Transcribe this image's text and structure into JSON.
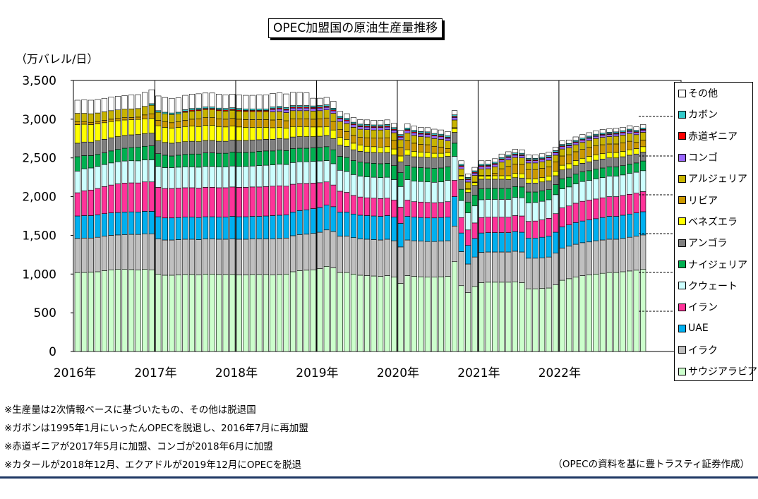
{
  "chart_data": {
    "type": "bar",
    "stacked": true,
    "title": "OPEC加盟国の原油生産量推移",
    "ylabel": "（万バレル/日）",
    "ylim": [
      0,
      3500
    ],
    "yticks": [
      "0",
      "500",
      "1,000",
      "1,500",
      "2,000",
      "2,500",
      "3,000",
      "3,500"
    ],
    "year_labels": [
      "2016年",
      "2017年",
      "2018年",
      "2019年",
      "2020年",
      "2021年",
      "2022年"
    ],
    "legend_position": "right",
    "series": [
      {
        "name": "サウジアラビア",
        "color": "#ccffcc",
        "values": [
          1020,
          1020,
          1025,
          1030,
          1045,
          1055,
          1060,
          1060,
          1058,
          1052,
          1060,
          1055,
          1000,
          985,
          985,
          990,
          995,
          995,
          990,
          1000,
          1000,
          995,
          995,
          995,
          990,
          990,
          995,
          995,
          995,
          990,
          995,
          1000,
          1030,
          1045,
          1050,
          1055,
          1070,
          1100,
          1080,
          1020,
          1020,
          1000,
          985,
          980,
          975,
          970,
          980,
          960,
          880,
          980,
          970,
          965,
          960,
          960,
          965,
          970,
          1160,
          850,
          760,
          840,
          890,
          895,
          895,
          895,
          895,
          900,
          890,
          810,
          810,
          815,
          820,
          860,
          920,
          940,
          960,
          980,
          990,
          1000,
          1010,
          1020,
          1020,
          1030,
          1040,
          1050,
          1060
        ]
      },
      {
        "name": "イラク",
        "color": "#c0c0c0",
        "values": [
          440,
          445,
          440,
          445,
          445,
          445,
          445,
          450,
          455,
          460,
          460,
          465,
          455,
          455,
          455,
          455,
          455,
          455,
          455,
          455,
          455,
          455,
          455,
          460,
          460,
          460,
          460,
          460,
          460,
          465,
          465,
          465,
          465,
          465,
          465,
          470,
          470,
          470,
          470,
          470,
          470,
          470,
          470,
          470,
          470,
          470,
          470,
          470,
          470,
          460,
          460,
          460,
          460,
          460,
          460,
          460,
          460,
          440,
          370,
          380,
          390,
          390,
          390,
          390,
          390,
          395,
          395,
          395,
          395,
          395,
          400,
          410,
          415,
          420,
          425,
          425,
          425,
          430,
          430,
          430,
          430,
          430,
          435,
          440,
          445
        ]
      },
      {
        "name": "UAE",
        "color": "#00b0f0",
        "values": [
          290,
          290,
          290,
          290,
          290,
          290,
          290,
          290,
          290,
          290,
          290,
          290,
          285,
          285,
          285,
          285,
          285,
          285,
          285,
          285,
          285,
          285,
          285,
          290,
          290,
          290,
          290,
          290,
          295,
          300,
          300,
          300,
          305,
          310,
          315,
          320,
          320,
          320,
          320,
          310,
          310,
          305,
          305,
          305,
          305,
          305,
          305,
          305,
          305,
          305,
          305,
          305,
          305,
          305,
          305,
          305,
          380,
          240,
          240,
          240,
          250,
          250,
          250,
          250,
          250,
          255,
          255,
          260,
          260,
          265,
          270,
          270,
          275,
          275,
          280,
          280,
          285,
          285,
          290,
          295,
          295,
          300,
          300,
          300,
          300
        ]
      },
      {
        "name": "イラン",
        "color": "#ff3399",
        "values": [
          300,
          320,
          330,
          340,
          350,
          360,
          370,
          375,
          375,
          375,
          380,
          380,
          380,
          380,
          380,
          380,
          380,
          380,
          380,
          380,
          380,
          380,
          380,
          380,
          380,
          380,
          380,
          380,
          380,
          380,
          380,
          370,
          360,
          350,
          340,
          330,
          320,
          300,
          280,
          270,
          255,
          240,
          235,
          230,
          230,
          230,
          225,
          220,
          210,
          210,
          200,
          200,
          200,
          195,
          195,
          200,
          210,
          200,
          200,
          200,
          200,
          200,
          200,
          200,
          200,
          205,
          210,
          215,
          220,
          225,
          230,
          240,
          245,
          245,
          250,
          255,
          255,
          255,
          255,
          255,
          255,
          255,
          255,
          255,
          260
        ]
      },
      {
        "name": "クウェート",
        "color": "#ccffff",
        "values": [
          280,
          285,
          285,
          285,
          285,
          285,
          285,
          285,
          285,
          285,
          285,
          285,
          270,
          270,
          270,
          270,
          270,
          270,
          270,
          270,
          270,
          270,
          270,
          270,
          270,
          270,
          270,
          275,
          275,
          275,
          280,
          280,
          280,
          280,
          280,
          280,
          280,
          275,
          275,
          270,
          270,
          270,
          270,
          270,
          270,
          270,
          270,
          265,
          265,
          265,
          265,
          265,
          265,
          265,
          265,
          275,
          310,
          220,
          220,
          220,
          230,
          230,
          230,
          230,
          230,
          235,
          235,
          240,
          240,
          240,
          240,
          245,
          245,
          245,
          250,
          255,
          255,
          260,
          260,
          265,
          265,
          265,
          270,
          270,
          270
        ]
      },
      {
        "name": "ナイジェリア",
        "color": "#00b050",
        "values": [
          185,
          170,
          160,
          155,
          150,
          155,
          160,
          165,
          170,
          175,
          175,
          180,
          165,
          160,
          150,
          155,
          160,
          165,
          170,
          175,
          175,
          175,
          175,
          180,
          180,
          180,
          180,
          185,
          185,
          180,
          180,
          180,
          180,
          175,
          175,
          175,
          175,
          180,
          180,
          180,
          180,
          180,
          180,
          180,
          180,
          180,
          180,
          180,
          180,
          180,
          180,
          180,
          180,
          180,
          180,
          175,
          170,
          145,
          140,
          140,
          140,
          140,
          140,
          140,
          140,
          140,
          140,
          140,
          135,
          135,
          130,
          130,
          130,
          125,
          125,
          125,
          125,
          125,
          125,
          120,
          120,
          120,
          120,
          120,
          125
        ]
      },
      {
        "name": "アンゴラ",
        "color": "#808080",
        "values": [
          175,
          175,
          175,
          175,
          175,
          170,
          165,
          165,
          165,
          165,
          165,
          165,
          165,
          165,
          165,
          165,
          165,
          165,
          160,
          160,
          160,
          155,
          155,
          155,
          155,
          155,
          155,
          150,
          150,
          150,
          150,
          150,
          150,
          150,
          150,
          145,
          145,
          145,
          145,
          145,
          145,
          140,
          140,
          140,
          140,
          140,
          140,
          140,
          140,
          135,
          135,
          135,
          135,
          135,
          135,
          135,
          140,
          125,
          125,
          125,
          125,
          120,
          120,
          120,
          115,
          115,
          115,
          115,
          115,
          115,
          115,
          115,
          115,
          110,
          110,
          110,
          115,
          115,
          115,
          115,
          115,
          115,
          115,
          115,
          115
        ]
      },
      {
        "name": "ベネズエラ",
        "color": "#ffff00",
        "values": [
          240,
          230,
          225,
          220,
          215,
          210,
          205,
          200,
          195,
          195,
          190,
          190,
          195,
          195,
          195,
          195,
          195,
          195,
          195,
          195,
          195,
          190,
          185,
          180,
          175,
          170,
          165,
          160,
          155,
          150,
          145,
          140,
          135,
          130,
          130,
          125,
          120,
          115,
          110,
          100,
          90,
          85,
          80,
          75,
          75,
          75,
          75,
          75,
          75,
          70,
          70,
          65,
          65,
          60,
          55,
          50,
          50,
          45,
          40,
          35,
          40,
          40,
          45,
          45,
          50,
          55,
          55,
          55,
          55,
          55,
          60,
          60,
          60,
          65,
          65,
          65,
          70,
          70,
          70,
          70,
          70,
          70,
          70,
          70,
          70
        ]
      },
      {
        "name": "リビア",
        "color": "#cc9900",
        "values": [
          35,
          30,
          30,
          30,
          30,
          30,
          30,
          30,
          30,
          30,
          50,
          60,
          70,
          70,
          70,
          70,
          80,
          90,
          100,
          100,
          100,
          100,
          100,
          100,
          100,
          100,
          100,
          100,
          100,
          100,
          100,
          95,
          100,
          100,
          100,
          100,
          105,
          110,
          110,
          100,
          100,
          100,
          100,
          110,
          110,
          115,
          115,
          110,
          110,
          115,
          105,
          100,
          100,
          90,
          80,
          50,
          10,
          8,
          8,
          8,
          8,
          10,
          30,
          90,
          120,
          120,
          120,
          120,
          120,
          120,
          120,
          120,
          120,
          115,
          115,
          115,
          115,
          115,
          115,
          110,
          110,
          110,
          110,
          80,
          85
        ]
      },
      {
        "name": "アルジェリア",
        "color": "#c8b400",
        "values": [
          110,
          110,
          110,
          110,
          110,
          110,
          110,
          110,
          110,
          110,
          110,
          110,
          105,
          105,
          105,
          105,
          105,
          105,
          105,
          105,
          105,
          105,
          105,
          105,
          105,
          105,
          105,
          105,
          105,
          105,
          105,
          105,
          105,
          105,
          105,
          105,
          105,
          105,
          105,
          105,
          105,
          105,
          105,
          105,
          105,
          105,
          105,
          100,
          100,
          100,
          100,
          100,
          100,
          100,
          100,
          100,
          100,
          85,
          85,
          85,
          85,
          85,
          85,
          85,
          85,
          85,
          85,
          85,
          85,
          85,
          85,
          85,
          90,
          90,
          90,
          90,
          90,
          95,
          95,
          95,
          100,
          100,
          100,
          100,
          100
        ]
      },
      {
        "name": "コンゴ",
        "color": "#9966ff",
        "values": [
          0,
          0,
          0,
          0,
          0,
          0,
          0,
          0,
          0,
          0,
          0,
          0,
          0,
          0,
          0,
          0,
          0,
          0,
          0,
          0,
          0,
          0,
          0,
          0,
          0,
          0,
          0,
          0,
          0,
          30,
          32,
          33,
          33,
          33,
          33,
          33,
          33,
          33,
          33,
          33,
          33,
          33,
          33,
          33,
          33,
          33,
          33,
          33,
          33,
          33,
          33,
          33,
          33,
          33,
          33,
          33,
          33,
          30,
          30,
          30,
          30,
          30,
          30,
          30,
          30,
          30,
          30,
          30,
          30,
          30,
          30,
          30,
          30,
          28,
          28,
          28,
          28,
          28,
          28,
          28,
          28,
          28,
          28,
          28,
          28
        ]
      },
      {
        "name": "赤道ギニア",
        "color": "#ff0000",
        "values": [
          0,
          0,
          0,
          0,
          0,
          0,
          0,
          0,
          0,
          0,
          0,
          0,
          0,
          0,
          0,
          0,
          13,
          13,
          13,
          13,
          13,
          13,
          13,
          13,
          13,
          13,
          13,
          13,
          13,
          13,
          13,
          13,
          13,
          13,
          13,
          13,
          13,
          13,
          13,
          13,
          13,
          13,
          13,
          13,
          13,
          13,
          13,
          13,
          13,
          13,
          13,
          13,
          13,
          13,
          13,
          13,
          13,
          12,
          12,
          12,
          12,
          12,
          12,
          12,
          12,
          12,
          12,
          12,
          11,
          11,
          11,
          11,
          11,
          10,
          10,
          10,
          10,
          10,
          10,
          10,
          10,
          10,
          10,
          10,
          10
        ]
      },
      {
        "name": "カボン",
        "color": "#33cccc",
        "values": [
          0,
          0,
          0,
          0,
          0,
          0,
          0,
          0,
          0,
          0,
          0,
          20,
          20,
          20,
          20,
          20,
          20,
          20,
          20,
          20,
          20,
          20,
          20,
          20,
          20,
          20,
          20,
          20,
          20,
          20,
          20,
          20,
          20,
          20,
          20,
          20,
          20,
          20,
          20,
          20,
          20,
          20,
          20,
          20,
          20,
          20,
          20,
          20,
          20,
          20,
          20,
          20,
          20,
          20,
          20,
          20,
          20,
          18,
          18,
          18,
          18,
          18,
          18,
          18,
          18,
          18,
          18,
          18,
          18,
          18,
          18,
          18,
          18,
          18,
          18,
          18,
          18,
          18,
          18,
          18,
          18,
          18,
          18,
          18,
          18
        ]
      },
      {
        "name": "その他",
        "color": "#ffffff",
        "values": [
          170,
          175,
          175,
          175,
          175,
          175,
          175,
          175,
          180,
          180,
          180,
          180,
          190,
          190,
          190,
          185,
          185,
          185,
          185,
          180,
          180,
          180,
          175,
          175,
          175,
          175,
          175,
          180,
          180,
          175,
          175,
          175,
          170,
          170,
          165,
          100,
          95,
          95,
          90,
          65,
          60,
          60,
          60,
          60,
          60,
          60,
          60,
          55,
          55,
          55,
          55,
          55,
          55,
          55,
          55,
          55,
          55,
          45,
          45,
          45,
          45,
          45,
          45,
          45,
          45,
          45,
          45,
          45,
          45,
          45,
          45,
          45,
          45,
          45,
          45,
          45,
          45,
          45,
          45,
          45,
          45,
          45,
          45,
          45,
          45
        ]
      }
    ]
  },
  "notes": [
    "※生産量は2次情報ベースに基づいたもの、その他は脱退国",
    "※ガボンは1995年1月にいったんOPECを脱退し、2016年7月に再加盟",
    "※赤道ギニアが2017年5月に加盟、コンゴが2018年6月に加盟",
    "※カタールが2018年12月、エクアドルが2019年12月にOPECを脱退"
  ],
  "source": "（OPECの資料を基に豊トラスティ証券作成）",
  "colors": {
    "bar_border": "#000000",
    "rule": "#1f3864"
  }
}
